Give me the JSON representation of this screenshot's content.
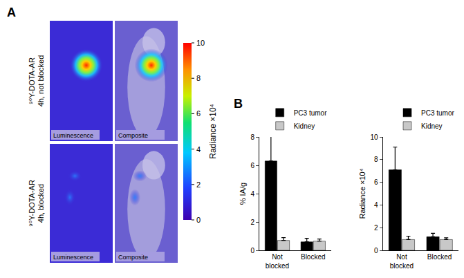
{
  "panels": {
    "A": {
      "label": "A",
      "images": [
        {
          "row_label": [
            "⁹⁰Y-DOTA-AR",
            "4h, not blocked"
          ],
          "captions": [
            "Luminescence",
            "Composite"
          ]
        },
        {
          "row_label": [
            "⁹⁰Y-DOTA-AR",
            "4h, blocked"
          ],
          "captions": [
            "Luminescence",
            "Composite"
          ]
        }
      ],
      "colorbar": {
        "title": "Radiance ×10⁴",
        "range": [
          0,
          10
        ],
        "ticks": [
          0,
          2,
          4,
          6,
          8,
          10
        ]
      }
    },
    "B": {
      "label": "B"
    }
  },
  "chart_data": [
    {
      "type": "bar",
      "categories": [
        "Not blocked",
        "Blocked"
      ],
      "ylabel": "% IA/g",
      "ylim": [
        0,
        8
      ],
      "yticks": [
        0,
        2,
        4,
        6,
        8
      ],
      "grid": false,
      "legend": "top right",
      "series": [
        {
          "name": "PC3 tumor",
          "color": "#000000",
          "values": [
            6.3,
            0.6
          ],
          "errors": [
            1.8,
            0.25
          ]
        },
        {
          "name": "Kidney",
          "color": "#c8c8c8",
          "values": [
            0.7,
            0.65
          ],
          "errors": [
            0.2,
            0.15
          ]
        }
      ]
    },
    {
      "type": "bar",
      "categories": [
        "Not blocked",
        "Blocked"
      ],
      "ylabel": "Radiance ×10⁴",
      "ylim": [
        0,
        10
      ],
      "yticks": [
        0,
        2,
        4,
        6,
        8,
        10
      ],
      "grid": false,
      "legend": "top right",
      "series": [
        {
          "name": "PC3 tumor",
          "color": "#000000",
          "values": [
            7.1,
            1.2
          ],
          "errors": [
            2.0,
            0.3
          ]
        },
        {
          "name": "Kidney",
          "color": "#c8c8c8",
          "values": [
            0.95,
            0.95
          ],
          "errors": [
            0.3,
            0.15
          ]
        }
      ]
    }
  ]
}
